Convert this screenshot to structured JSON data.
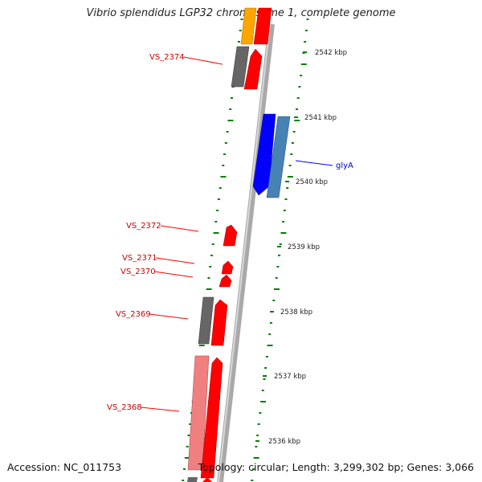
{
  "title": "Vibrio splendidus LGP32 chromosome 1, complete genome",
  "accession": "Accession: NC_011753",
  "topology_summary": "Topology: circular; Length: 3,299,302 bp; Genes: 3,066",
  "colors": {
    "backbone": "#a9a9a9",
    "gene_forward": "#ff0000",
    "gene_reverse": "#0000ff",
    "gene_other_forward": "#4682b4",
    "gene_other_reverse": "#ffa500",
    "pseudogene": "#666666",
    "pink_gene": "#f08080",
    "ticks": "#008000",
    "label_red": "#cc0000",
    "label_blue": "#0000cc"
  },
  "ticks": [
    {
      "label": "2542 kbp"
    },
    {
      "label": "2541 kbp"
    },
    {
      "label": "2540 kbp"
    },
    {
      "label": "2539 kbp"
    },
    {
      "label": "2538 kbp"
    },
    {
      "label": "2537 kbp"
    },
    {
      "label": "2536 kbp"
    }
  ],
  "gene_labels": [
    {
      "name": "VS_2374",
      "color": "red"
    },
    {
      "name": "glyA",
      "color": "blue"
    },
    {
      "name": "VS_2372",
      "color": "red"
    },
    {
      "name": "VS_2371",
      "color": "red"
    },
    {
      "name": "VS_2370",
      "color": "red"
    },
    {
      "name": "VS_2369",
      "color": "red"
    },
    {
      "name": "VS_2368",
      "color": "red"
    }
  ]
}
